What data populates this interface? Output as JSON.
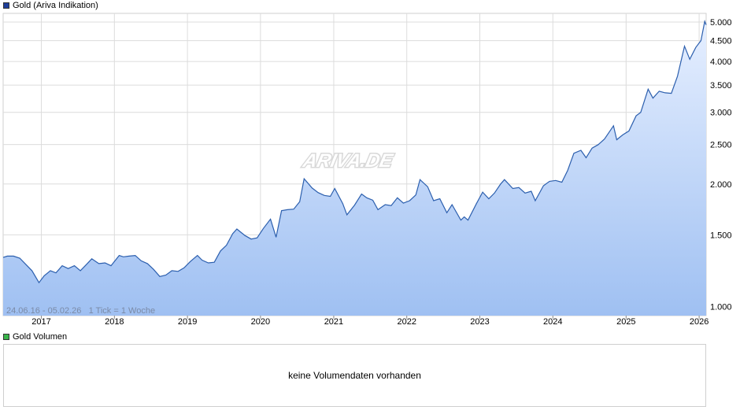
{
  "legend": {
    "main_label": "Gold (Ariva Indikation)",
    "volume_label": "Gold Volumen"
  },
  "watermark": "ARIVA.DE",
  "info_text": "24.06.16 - 05.02.26   1 Tick = 1 Woche",
  "volume_message": "keine Volumendaten vorhanden",
  "colors": {
    "line": "#2c5fae",
    "fill_top": "#e6efff",
    "fill_bottom": "#9fc0f2",
    "grid": "#dcdcdc",
    "main_swatch": "#1f3f9a",
    "volume_swatch": "#39b54a"
  },
  "chart_data": {
    "type": "area",
    "y_scale": "log",
    "ylim": [
      950,
      5250
    ],
    "xlim": [
      "2016-06-24",
      "2026-02-05"
    ],
    "y_ticks": [
      1000,
      1500,
      2000,
      2500,
      3000,
      3500,
      4000,
      4500,
      5000
    ],
    "y_tick_labels": [
      "1.000",
      "1.500",
      "2.000",
      "2.500",
      "3.000",
      "3.500",
      "4.000",
      "4.500",
      "5.000"
    ],
    "x_ticks": [
      "2017",
      "2018",
      "2019",
      "2020",
      "2021",
      "2022",
      "2023",
      "2024",
      "2025",
      "2026"
    ],
    "series": [
      {
        "points": [
          [
            "2016-06-24",
            1320
          ],
          [
            "2016-07-15",
            1330
          ],
          [
            "2016-08-15",
            1330
          ],
          [
            "2016-09-15",
            1315
          ],
          [
            "2016-10-15",
            1270
          ],
          [
            "2016-11-15",
            1225
          ],
          [
            "2016-12-20",
            1145
          ],
          [
            "2017-01-15",
            1190
          ],
          [
            "2017-02-15",
            1225
          ],
          [
            "2017-03-15",
            1210
          ],
          [
            "2017-04-15",
            1260
          ],
          [
            "2017-05-15",
            1240
          ],
          [
            "2017-06-15",
            1260
          ],
          [
            "2017-07-15",
            1225
          ],
          [
            "2017-08-15",
            1270
          ],
          [
            "2017-09-10",
            1310
          ],
          [
            "2017-10-15",
            1275
          ],
          [
            "2017-11-15",
            1280
          ],
          [
            "2017-12-15",
            1260
          ],
          [
            "2018-01-25",
            1335
          ],
          [
            "2018-02-15",
            1325
          ],
          [
            "2018-03-15",
            1330
          ],
          [
            "2018-04-15",
            1335
          ],
          [
            "2018-05-15",
            1295
          ],
          [
            "2018-06-15",
            1275
          ],
          [
            "2018-07-15",
            1235
          ],
          [
            "2018-08-16",
            1185
          ],
          [
            "2018-09-15",
            1195
          ],
          [
            "2018-10-15",
            1225
          ],
          [
            "2018-11-15",
            1220
          ],
          [
            "2018-12-15",
            1245
          ],
          [
            "2019-01-15",
            1290
          ],
          [
            "2019-02-20",
            1335
          ],
          [
            "2019-03-15",
            1300
          ],
          [
            "2019-04-15",
            1280
          ],
          [
            "2019-05-15",
            1285
          ],
          [
            "2019-06-15",
            1370
          ],
          [
            "2019-07-15",
            1415
          ],
          [
            "2019-08-15",
            1510
          ],
          [
            "2019-09-05",
            1550
          ],
          [
            "2019-10-15",
            1495
          ],
          [
            "2019-11-15",
            1465
          ],
          [
            "2019-12-15",
            1475
          ],
          [
            "2020-01-15",
            1555
          ],
          [
            "2020-02-20",
            1640
          ],
          [
            "2020-03-19",
            1480
          ],
          [
            "2020-04-15",
            1720
          ],
          [
            "2020-05-15",
            1730
          ],
          [
            "2020-06-15",
            1735
          ],
          [
            "2020-07-15",
            1810
          ],
          [
            "2020-08-06",
            2060
          ],
          [
            "2020-09-15",
            1955
          ],
          [
            "2020-10-15",
            1905
          ],
          [
            "2020-11-15",
            1875
          ],
          [
            "2020-12-15",
            1865
          ],
          [
            "2021-01-06",
            1950
          ],
          [
            "2021-02-15",
            1790
          ],
          [
            "2021-03-08",
            1680
          ],
          [
            "2021-04-15",
            1775
          ],
          [
            "2021-05-20",
            1890
          ],
          [
            "2021-06-15",
            1850
          ],
          [
            "2021-07-15",
            1825
          ],
          [
            "2021-08-10",
            1730
          ],
          [
            "2021-09-15",
            1780
          ],
          [
            "2021-10-15",
            1770
          ],
          [
            "2021-11-15",
            1850
          ],
          [
            "2021-12-15",
            1795
          ],
          [
            "2022-01-15",
            1820
          ],
          [
            "2022-02-15",
            1880
          ],
          [
            "2022-03-08",
            2050
          ],
          [
            "2022-04-15",
            1970
          ],
          [
            "2022-05-15",
            1820
          ],
          [
            "2022-06-15",
            1840
          ],
          [
            "2022-07-20",
            1700
          ],
          [
            "2022-08-15",
            1780
          ],
          [
            "2022-09-28",
            1630
          ],
          [
            "2022-10-15",
            1660
          ],
          [
            "2022-11-03",
            1630
          ],
          [
            "2022-12-15",
            1790
          ],
          [
            "2023-01-15",
            1910
          ],
          [
            "2023-02-15",
            1840
          ],
          [
            "2023-03-15",
            1900
          ],
          [
            "2023-04-15",
            2000
          ],
          [
            "2023-05-04",
            2050
          ],
          [
            "2023-06-15",
            1950
          ],
          [
            "2023-07-15",
            1960
          ],
          [
            "2023-08-15",
            1900
          ],
          [
            "2023-09-15",
            1920
          ],
          [
            "2023-10-05",
            1820
          ],
          [
            "2023-11-15",
            1980
          ],
          [
            "2023-12-15",
            2030
          ],
          [
            "2024-01-15",
            2040
          ],
          [
            "2024-02-15",
            2020
          ],
          [
            "2024-03-15",
            2160
          ],
          [
            "2024-04-15",
            2380
          ],
          [
            "2024-05-20",
            2420
          ],
          [
            "2024-06-15",
            2320
          ],
          [
            "2024-07-15",
            2450
          ],
          [
            "2024-08-15",
            2500
          ],
          [
            "2024-09-15",
            2580
          ],
          [
            "2024-10-30",
            2780
          ],
          [
            "2024-11-15",
            2570
          ],
          [
            "2024-12-15",
            2640
          ],
          [
            "2025-01-15",
            2700
          ],
          [
            "2025-02-20",
            2940
          ],
          [
            "2025-03-15",
            3000
          ],
          [
            "2025-04-21",
            3420
          ],
          [
            "2025-05-15",
            3250
          ],
          [
            "2025-06-15",
            3380
          ],
          [
            "2025-07-15",
            3350
          ],
          [
            "2025-08-15",
            3340
          ],
          [
            "2025-09-15",
            3680
          ],
          [
            "2025-10-20",
            4360
          ],
          [
            "2025-11-15",
            4050
          ],
          [
            "2025-12-15",
            4330
          ],
          [
            "2026-01-10",
            4500
          ],
          [
            "2026-01-29",
            5020
          ],
          [
            "2026-02-05",
            4920
          ]
        ]
      }
    ]
  }
}
